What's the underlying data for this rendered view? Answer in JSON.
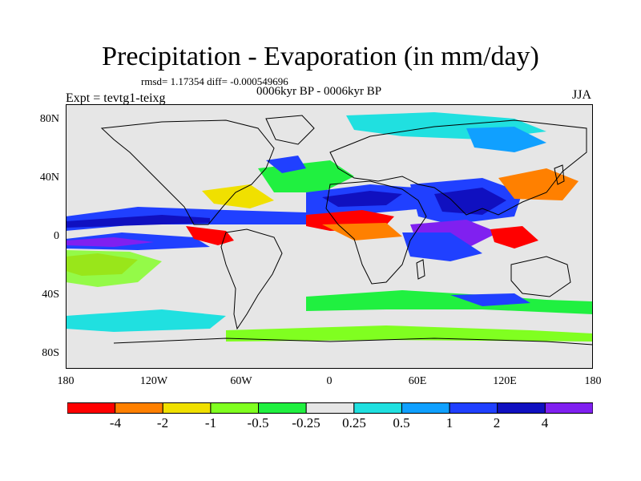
{
  "title": "Precipitation - Evaporation (in mm/day)",
  "stats": "rmsd= 1.17354 diff= -0.000549696",
  "period": "0006kyr BP - 0006kyr BP",
  "experiment": "Expt = tevtg1-teixg",
  "season": "JJA",
  "map": {
    "lat_ticks": [
      "80N",
      "40N",
      "0",
      "40S",
      "80S"
    ],
    "lon_ticks": [
      "180",
      "120W",
      "60W",
      "0",
      "60E",
      "120E",
      "180"
    ],
    "land_outline_color": "#000000",
    "background_color": "#e6e6e6"
  },
  "colorbar": {
    "labels": [
      "-4",
      "-2",
      "-1",
      "-0.5",
      "-0.25",
      "0.25",
      "0.5",
      "1",
      "2",
      "4"
    ],
    "colors": [
      "#ff0000",
      "#ff8000",
      "#f0e000",
      "#80ff20",
      "#20f040",
      "#e6e6e6",
      "#20e0e0",
      "#10a0ff",
      "#2040ff",
      "#1010c0",
      "#8020f0"
    ]
  }
}
